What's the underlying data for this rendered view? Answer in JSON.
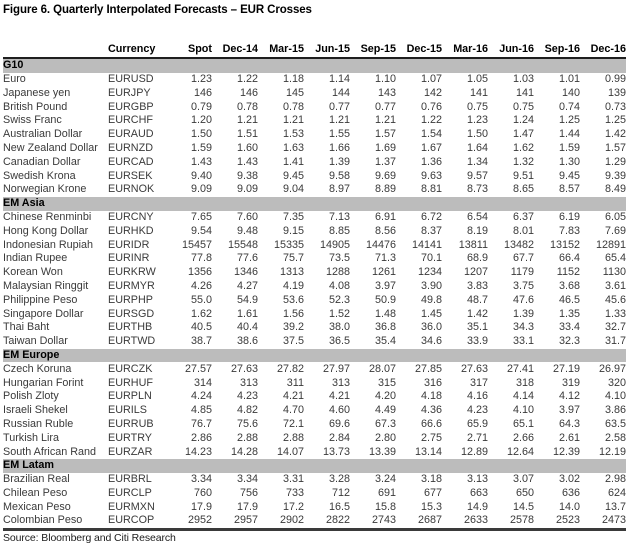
{
  "figure": {
    "title": "Figure 6. Quarterly Interpolated Forecasts – EUR Crosses",
    "source": "Source: Bloomberg and Citi Research"
  },
  "table": {
    "headers": [
      "",
      "Currency",
      "Spot",
      "Dec-14",
      "Mar-15",
      "Jun-15",
      "Sep-15",
      "Dec-15",
      "Mar-16",
      "Jun-16",
      "Sep-16",
      "Dec-16"
    ],
    "sections": [
      {
        "name": "G10",
        "rows": [
          {
            "name": "Euro",
            "code": "EURUSD",
            "values": [
              "1.23",
              "1.22",
              "1.18",
              "1.14",
              "1.10",
              "1.07",
              "1.05",
              "1.03",
              "1.01",
              "0.99"
            ]
          },
          {
            "name": "Japanese yen",
            "code": "EURJPY",
            "values": [
              "146",
              "146",
              "145",
              "144",
              "143",
              "142",
              "141",
              "141",
              "140",
              "139"
            ]
          },
          {
            "name": "British Pound",
            "code": "EURGBP",
            "values": [
              "0.79",
              "0.78",
              "0.78",
              "0.77",
              "0.77",
              "0.76",
              "0.75",
              "0.75",
              "0.74",
              "0.73"
            ]
          },
          {
            "name": "Swiss Franc",
            "code": "EURCHF",
            "values": [
              "1.20",
              "1.21",
              "1.21",
              "1.21",
              "1.21",
              "1.22",
              "1.23",
              "1.24",
              "1.25",
              "1.25"
            ]
          },
          {
            "name": "Australian Dollar",
            "code": "EURAUD",
            "values": [
              "1.50",
              "1.51",
              "1.53",
              "1.55",
              "1.57",
              "1.54",
              "1.50",
              "1.47",
              "1.44",
              "1.42"
            ]
          },
          {
            "name": "New Zealand Dollar",
            "code": "EURNZD",
            "values": [
              "1.59",
              "1.60",
              "1.63",
              "1.66",
              "1.69",
              "1.67",
              "1.64",
              "1.62",
              "1.59",
              "1.57"
            ]
          },
          {
            "name": "Canadian Dollar",
            "code": "EURCAD",
            "values": [
              "1.43",
              "1.43",
              "1.41",
              "1.39",
              "1.37",
              "1.36",
              "1.34",
              "1.32",
              "1.30",
              "1.29"
            ]
          },
          {
            "name": "Swedish Krona",
            "code": "EURSEK",
            "values": [
              "9.40",
              "9.38",
              "9.45",
              "9.58",
              "9.69",
              "9.63",
              "9.57",
              "9.51",
              "9.45",
              "9.39"
            ]
          },
          {
            "name": "Norwegian Krone",
            "code": "EURNOK",
            "values": [
              "9.09",
              "9.09",
              "9.04",
              "8.97",
              "8.89",
              "8.81",
              "8.73",
              "8.65",
              "8.57",
              "8.49"
            ]
          }
        ]
      },
      {
        "name": "EM Asia",
        "rows": [
          {
            "name": "Chinese Renminbi",
            "code": "EURCNY",
            "values": [
              "7.65",
              "7.60",
              "7.35",
              "7.13",
              "6.91",
              "6.72",
              "6.54",
              "6.37",
              "6.19",
              "6.05"
            ]
          },
          {
            "name": "Hong Kong Dollar",
            "code": "EURHKD",
            "values": [
              "9.54",
              "9.48",
              "9.15",
              "8.85",
              "8.56",
              "8.37",
              "8.19",
              "8.01",
              "7.83",
              "7.69"
            ]
          },
          {
            "name": "Indonesian Rupiah",
            "code": "EURIDR",
            "values": [
              "15457",
              "15548",
              "15335",
              "14905",
              "14476",
              "14141",
              "13811",
              "13482",
              "13152",
              "12891"
            ]
          },
          {
            "name": "Indian Rupee",
            "code": "EURINR",
            "values": [
              "77.8",
              "77.6",
              "75.7",
              "73.5",
              "71.3",
              "70.1",
              "68.9",
              "67.7",
              "66.4",
              "65.4"
            ]
          },
          {
            "name": "Korean Won",
            "code": "EURKRW",
            "values": [
              "1356",
              "1346",
              "1313",
              "1288",
              "1261",
              "1234",
              "1207",
              "1179",
              "1152",
              "1130"
            ]
          },
          {
            "name": "Malaysian Ringgit",
            "code": "EURMYR",
            "values": [
              "4.26",
              "4.27",
              "4.19",
              "4.08",
              "3.97",
              "3.90",
              "3.83",
              "3.75",
              "3.68",
              "3.61"
            ]
          },
          {
            "name": "Philippine Peso",
            "code": "EURPHP",
            "values": [
              "55.0",
              "54.9",
              "53.6",
              "52.3",
              "50.9",
              "49.8",
              "48.7",
              "47.6",
              "46.5",
              "45.6"
            ]
          },
          {
            "name": "Singapore Dollar",
            "code": "EURSGD",
            "values": [
              "1.62",
              "1.61",
              "1.56",
              "1.52",
              "1.48",
              "1.45",
              "1.42",
              "1.39",
              "1.35",
              "1.33"
            ]
          },
          {
            "name": "Thai Baht",
            "code": "EURTHB",
            "values": [
              "40.5",
              "40.4",
              "39.2",
              "38.0",
              "36.8",
              "36.0",
              "35.1",
              "34.3",
              "33.4",
              "32.7"
            ]
          },
          {
            "name": "Taiwan Dollar",
            "code": "EURTWD",
            "values": [
              "38.7",
              "38.6",
              "37.5",
              "36.5",
              "35.4",
              "34.6",
              "33.9",
              "33.1",
              "32.3",
              "31.7"
            ]
          }
        ]
      },
      {
        "name": "EM Europe",
        "rows": [
          {
            "name": "Czech Koruna",
            "code": "EURCZK",
            "values": [
              "27.57",
              "27.63",
              "27.82",
              "27.97",
              "28.07",
              "27.85",
              "27.63",
              "27.41",
              "27.19",
              "26.97"
            ]
          },
          {
            "name": "Hungarian Forint",
            "code": "EURHUF",
            "values": [
              "314",
              "313",
              "311",
              "313",
              "315",
              "316",
              "317",
              "318",
              "319",
              "320"
            ]
          },
          {
            "name": "Polish Zloty",
            "code": "EURPLN",
            "values": [
              "4.24",
              "4.23",
              "4.21",
              "4.21",
              "4.20",
              "4.18",
              "4.16",
              "4.14",
              "4.12",
              "4.10"
            ]
          },
          {
            "name": "Israeli Shekel",
            "code": "EURILS",
            "values": [
              "4.85",
              "4.82",
              "4.70",
              "4.60",
              "4.49",
              "4.36",
              "4.23",
              "4.10",
              "3.97",
              "3.86"
            ]
          },
          {
            "name": "Russian Ruble",
            "code": "EURRUB",
            "values": [
              "76.7",
              "75.6",
              "72.1",
              "69.6",
              "67.3",
              "66.6",
              "65.9",
              "65.1",
              "64.3",
              "63.5"
            ]
          },
          {
            "name": "Turkish Lira",
            "code": "EURTRY",
            "values": [
              "2.86",
              "2.88",
              "2.88",
              "2.84",
              "2.80",
              "2.75",
              "2.71",
              "2.66",
              "2.61",
              "2.58"
            ]
          },
          {
            "name": "South African Rand",
            "code": "EURZAR",
            "values": [
              "14.23",
              "14.28",
              "14.07",
              "13.73",
              "13.39",
              "13.14",
              "12.89",
              "12.64",
              "12.39",
              "12.19"
            ]
          }
        ]
      },
      {
        "name": "EM Latam",
        "rows": [
          {
            "name": "Brazilian Real",
            "code": "EURBRL",
            "values": [
              "3.34",
              "3.34",
              "3.31",
              "3.28",
              "3.24",
              "3.18",
              "3.13",
              "3.07",
              "3.02",
              "2.98"
            ]
          },
          {
            "name": "Chilean Peso",
            "code": "EURCLP",
            "values": [
              "760",
              "756",
              "733",
              "712",
              "691",
              "677",
              "663",
              "650",
              "636",
              "624"
            ]
          },
          {
            "name": "Mexican Peso",
            "code": "EURMXN",
            "values": [
              "17.9",
              "17.9",
              "17.2",
              "16.5",
              "15.8",
              "15.3",
              "14.9",
              "14.5",
              "14.0",
              "13.7"
            ]
          },
          {
            "name": "Colombian Peso",
            "code": "EURCOP",
            "values": [
              "2952",
              "2957",
              "2902",
              "2822",
              "2743",
              "2687",
              "2633",
              "2578",
              "2523",
              "2473"
            ]
          }
        ]
      }
    ]
  },
  "colors": {
    "section_band": "#bcbcbc",
    "header_rule": "#1f1f1f",
    "bottom_rule": "#3a3a3a",
    "body_text": "#3a3a3a"
  }
}
